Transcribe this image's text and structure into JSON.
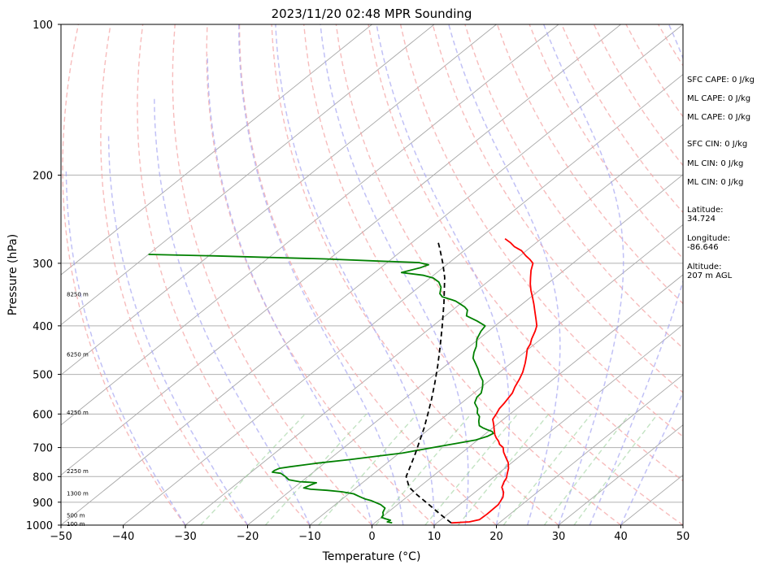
{
  "chart_data": {
    "type": "line",
    "title": "2023/11/20 02:48 MPR Sounding",
    "xlabel": "Temperature (°C)",
    "ylabel": "Pressure (hPa)",
    "xlim": [
      -50,
      50
    ],
    "ylim": [
      1000,
      100
    ],
    "y_scale": "log",
    "skew": "skew-T",
    "grid": true,
    "x_ticks": [
      "−50",
      "−40",
      "−30",
      "−20",
      "−10",
      "0",
      "10",
      "20",
      "30",
      "40",
      "50"
    ],
    "x_tick_values": [
      -50,
      -40,
      -30,
      -20,
      -10,
      0,
      10,
      20,
      30,
      40,
      50
    ],
    "y_ticks": [
      {
        "p": 100,
        "label": "100"
      },
      {
        "p": 200,
        "label": "200"
      },
      {
        "p": 300,
        "label": "300"
      },
      {
        "p": 400,
        "label": "400"
      },
      {
        "p": 500,
        "label": "500"
      },
      {
        "p": 600,
        "label": "600"
      },
      {
        "p": 700,
        "label": "700"
      },
      {
        "p": 800,
        "label": "800"
      },
      {
        "p": 900,
        "label": "900"
      },
      {
        "p": 1000,
        "label": "1000"
      }
    ],
    "height_labels": [
      {
        "p": 993,
        "label": "100 m"
      },
      {
        "p": 955,
        "label": "500 m"
      },
      {
        "p": 862,
        "label": "1300 m"
      },
      {
        "p": 778,
        "label": "2250 m"
      },
      {
        "p": 595,
        "label": "4250 m"
      },
      {
        "p": 455,
        "label": "6250 m"
      },
      {
        "p": 345,
        "label": "8250 m"
      }
    ],
    "series": [
      {
        "color": "#ff0000",
        "style": "solid",
        "points": [
          [
            12.3,
            990
          ],
          [
            15.0,
            985
          ],
          [
            16.2,
            975
          ],
          [
            16.3,
            950
          ],
          [
            16.2,
            910
          ],
          [
            15.5,
            880
          ],
          [
            14.6,
            860
          ],
          [
            13.3,
            840
          ],
          [
            12.6,
            820
          ],
          [
            12.2,
            805
          ],
          [
            11.5,
            790
          ],
          [
            10.6,
            770
          ],
          [
            9.4,
            750
          ],
          [
            8.2,
            735
          ],
          [
            6.6,
            715
          ],
          [
            5.6,
            700
          ],
          [
            4.4,
            690
          ],
          [
            3.6,
            680
          ],
          [
            2.6,
            670
          ],
          [
            1.7,
            660
          ],
          [
            0.6,
            645
          ],
          [
            -0.5,
            630
          ],
          [
            -1.7,
            615
          ],
          [
            -2.2,
            600
          ],
          [
            -2.8,
            585
          ],
          [
            -3.1,
            570
          ],
          [
            -3.8,
            545
          ],
          [
            -4.6,
            530
          ],
          [
            -5.5,
            510
          ],
          [
            -6.3,
            495
          ],
          [
            -7.7,
            475
          ],
          [
            -8.9,
            460
          ],
          [
            -10.2,
            445
          ],
          [
            -10.7,
            435
          ],
          [
            -11.5,
            425
          ],
          [
            -12.5,
            410
          ],
          [
            -13.3,
            400
          ],
          [
            -14.5,
            390
          ],
          [
            -16.4,
            375
          ],
          [
            -18.1,
            362
          ],
          [
            -19.8,
            350
          ],
          [
            -21.3,
            340
          ],
          [
            -22.7,
            330
          ],
          [
            -24.0,
            320
          ],
          [
            -25.3,
            310
          ],
          [
            -26.4,
            300
          ],
          [
            -27.6,
            295
          ],
          [
            -29.0,
            290
          ],
          [
            -30.8,
            283
          ],
          [
            -32.7,
            278
          ],
          [
            -34.1,
            273
          ],
          [
            -35.8,
            268
          ]
        ]
      },
      {
        "color": "#008000",
        "style": "solid",
        "points": [
          [
            2.8,
            990
          ],
          [
            1.8,
            985
          ],
          [
            2.0,
            978
          ],
          [
            1.0,
            972
          ],
          [
            0.0,
            965
          ],
          [
            -0.2,
            955
          ],
          [
            -0.8,
            943
          ],
          [
            -1.3,
            925
          ],
          [
            -2.7,
            910
          ],
          [
            -4.1,
            900
          ],
          [
            -5.1,
            893
          ],
          [
            -6.3,
            887
          ],
          [
            -7.7,
            877
          ],
          [
            -9.2,
            866
          ],
          [
            -11.5,
            858
          ],
          [
            -14.2,
            852
          ],
          [
            -17.0,
            848
          ],
          [
            -18.4,
            843
          ],
          [
            -17.8,
            830
          ],
          [
            -17.4,
            823
          ],
          [
            -18.8,
            821
          ],
          [
            -20.3,
            819
          ],
          [
            -22.4,
            812
          ],
          [
            -23.6,
            800
          ],
          [
            -25.0,
            788
          ],
          [
            -26.6,
            784
          ],
          [
            -26.6,
            778
          ],
          [
            -26.2,
            770
          ],
          [
            -24.9,
            765
          ],
          [
            -21.2,
            752
          ],
          [
            -16.6,
            740
          ],
          [
            -12.9,
            728
          ],
          [
            -9.5,
            718
          ],
          [
            -7.2,
            707
          ],
          [
            -5.2,
            698
          ],
          [
            -2.3,
            685
          ],
          [
            -0.3,
            676
          ],
          [
            0.8,
            665
          ],
          [
            1.2,
            656
          ],
          [
            0.6,
            650
          ],
          [
            -0.5,
            645
          ],
          [
            -1.5,
            640
          ],
          [
            -2.6,
            633
          ],
          [
            -3.6,
            620
          ],
          [
            -4.4,
            607
          ],
          [
            -5.4,
            598
          ],
          [
            -6.3,
            585
          ],
          [
            -7.9,
            570
          ],
          [
            -8.7,
            555
          ],
          [
            -8.8,
            545
          ],
          [
            -9.8,
            530
          ],
          [
            -11.0,
            515
          ],
          [
            -12.8,
            500
          ],
          [
            -14.1,
            488
          ],
          [
            -15.7,
            475
          ],
          [
            -17.1,
            464
          ],
          [
            -18.1,
            452
          ],
          [
            -18.9,
            440
          ],
          [
            -20.3,
            425
          ],
          [
            -21.2,
            410
          ],
          [
            -21.6,
            400
          ],
          [
            -23.9,
            391
          ],
          [
            -26.6,
            382
          ],
          [
            -27.6,
            372
          ],
          [
            -28.6,
            367
          ],
          [
            -29.9,
            362
          ],
          [
            -31.3,
            357
          ],
          [
            -32.1,
            355
          ],
          [
            -34.3,
            350
          ],
          [
            -35.3,
            345
          ],
          [
            -36.4,
            335
          ],
          [
            -37.8,
            327
          ],
          [
            -39.5,
            321
          ],
          [
            -41.6,
            317
          ],
          [
            -45.7,
            313
          ],
          [
            -43.6,
            306
          ],
          [
            -42.9,
            302
          ],
          [
            -44.9,
            299
          ],
          [
            -51.7,
            297
          ],
          [
            -60.8,
            294
          ],
          [
            -70.0,
            292
          ],
          [
            -79.0,
            290
          ],
          [
            -90.0,
            288
          ]
        ]
      },
      {
        "color": "#000000",
        "style": "dashed",
        "points": [
          [
            12.3,
            990
          ],
          [
            9.6,
            960
          ],
          [
            6.9,
            930
          ],
          [
            4.1,
            900
          ],
          [
            1.2,
            870
          ],
          [
            -1.6,
            840
          ],
          [
            -4.2,
            800
          ],
          [
            -5.7,
            760
          ],
          [
            -7.3,
            720
          ],
          [
            -9.1,
            680
          ],
          [
            -11.0,
            640
          ],
          [
            -13.2,
            600
          ],
          [
            -15.6,
            560
          ],
          [
            -18.3,
            520
          ],
          [
            -21.3,
            480
          ],
          [
            -24.7,
            440
          ],
          [
            -28.5,
            400
          ],
          [
            -32.8,
            360
          ],
          [
            -37.8,
            320
          ],
          [
            -40.9,
            300
          ],
          [
            -44.4,
            280
          ],
          [
            -46.3,
            270
          ]
        ]
      }
    ],
    "background_lines": {
      "isotherms_C": [
        -100,
        -90,
        -80,
        -70,
        -60,
        -50,
        -40,
        -30,
        -20,
        -10,
        0,
        10,
        20,
        30,
        40,
        50
      ],
      "dry_adiabats_C": [
        -30,
        -20,
        -10,
        0,
        10,
        20,
        30,
        40,
        50,
        60,
        70,
        80,
        90,
        100,
        110,
        120,
        130,
        140,
        150,
        160,
        170,
        180,
        190,
        200
      ],
      "moist_adiabats_C": [
        -30,
        -20,
        -10,
        0,
        5,
        10,
        15,
        20,
        25,
        30,
        35,
        40
      ],
      "mixing_ratios_gkg": [
        0.4,
        1,
        2,
        4,
        7,
        10,
        16,
        24,
        32
      ]
    },
    "annotations": [
      "SFC CAPE: 0 J/kg",
      "ML CAPE: 0 J/kg",
      "ML CAPE: 0 J/kg",
      "SFC CIN: 0 J/kg",
      "ML CIN: 0 J/kg",
      "ML CIN: 0 J/kg",
      "Latitude:\n34.724",
      "Longitude:\n-86.646",
      "Altitude:\n207 m AGL"
    ]
  }
}
